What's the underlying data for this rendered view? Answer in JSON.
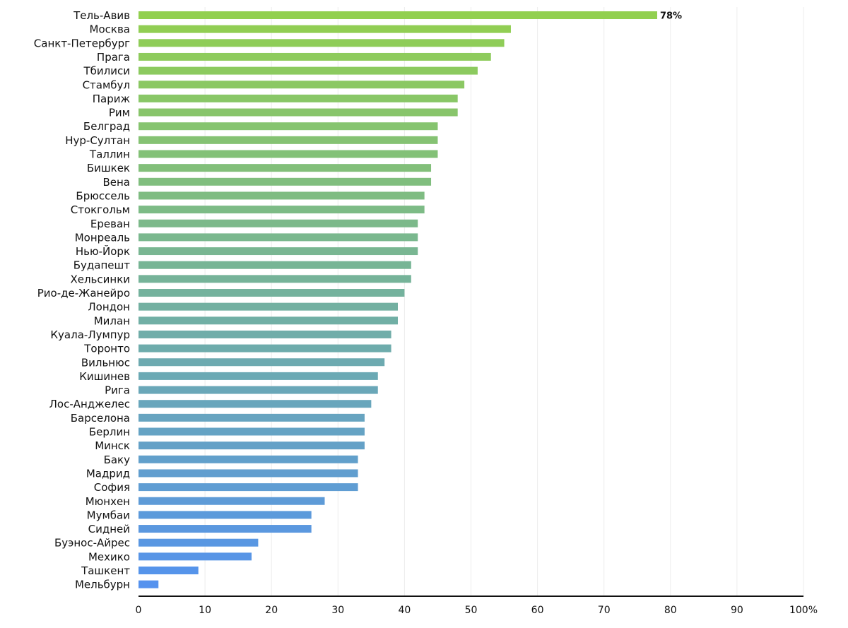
{
  "chart_data": {
    "type": "bar",
    "orientation": "horizontal",
    "title": "",
    "xlabel": "",
    "ylabel": "",
    "xlim": [
      0,
      100
    ],
    "x_ticks": [
      "0",
      "10",
      "20",
      "30",
      "40",
      "50",
      "60",
      "70",
      "80",
      "90",
      "100%"
    ],
    "grid": "vertical",
    "legend": "none",
    "value_label": "78%",
    "color_start": "#92d050",
    "color_end": "#5592ee",
    "categories": [
      "Тель-Авив",
      "Москва",
      "Санкт-Петербург",
      "Прага",
      "Тбилиси",
      "Стамбул",
      "Париж",
      "Рим",
      "Белград",
      "Нур-Султан",
      "Таллин",
      "Бишкек",
      "Вена",
      "Брюссель",
      "Стокгольм",
      "Ереван",
      "Монреаль",
      "Нью-Йорк",
      "Будапешт",
      "Хельсинки",
      "Рио-де-Жанейро",
      "Лондон",
      "Милан",
      "Куала-Лумпур",
      "Торонто",
      "Вильнюс",
      "Кишинев",
      "Рига",
      "Лос-Анджелес",
      "Барселона",
      "Берлин",
      "Минск",
      "Баку",
      "Мадрид",
      "София",
      "Мюнхен",
      "Мумбаи",
      "Сидней",
      "Буэнос-Айрес",
      "Мехико",
      "Ташкент",
      "Мельбурн"
    ],
    "values": [
      78,
      56,
      55,
      53,
      51,
      49,
      48,
      48,
      45,
      45,
      45,
      44,
      44,
      43,
      43,
      42,
      42,
      42,
      41,
      41,
      40,
      39,
      39,
      38,
      38,
      37,
      36,
      36,
      35,
      34,
      34,
      34,
      33,
      33,
      33,
      28,
      26,
      26,
      18,
      17,
      9,
      3
    ]
  }
}
